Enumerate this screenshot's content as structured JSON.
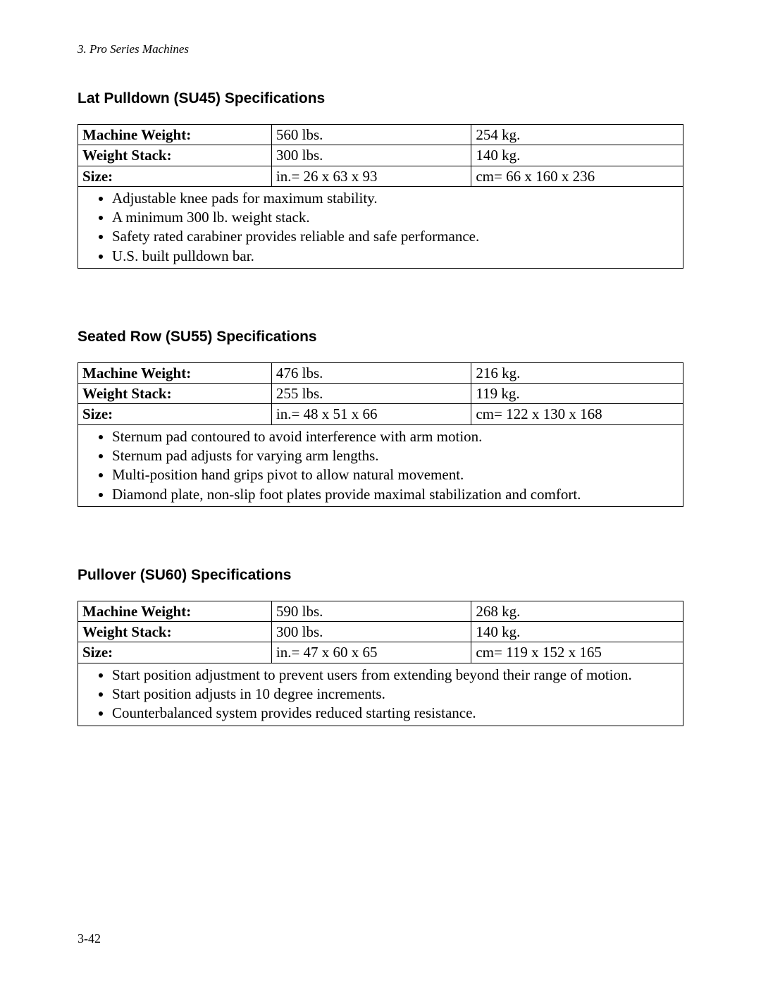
{
  "running_header": "3. Pro Series Machines",
  "page_number": "3-42",
  "sections": {
    "su45": {
      "heading": "Lat Pulldown (SU45) Specifications",
      "rows": [
        {
          "label": "Machine Weight:",
          "imperial": "560 lbs.",
          "metric": "254 kg."
        },
        {
          "label": "Weight Stack:",
          "imperial": "300 lbs.",
          "metric": "140 kg."
        },
        {
          "label": "Size:",
          "imperial": "in.= 26 x 63 x 93",
          "metric": "cm= 66 x 160 x 236"
        }
      ],
      "features": [
        "Adjustable knee pads for maximum stability.",
        "A minimum 300 lb. weight stack.",
        "Safety rated carabiner provides reliable and safe performance.",
        "U.S. built pulldown bar."
      ]
    },
    "su55": {
      "heading": "Seated Row (SU55) Specifications",
      "rows": [
        {
          "label": "Machine Weight:",
          "imperial": "476 lbs.",
          "metric": "216 kg."
        },
        {
          "label": "Weight Stack:",
          "imperial": "255 lbs.",
          "metric": "119 kg."
        },
        {
          "label": "Size:",
          "imperial": "in.= 48 x 51 x 66",
          "metric": "cm= 122 x 130 x 168"
        }
      ],
      "features": [
        "Sternum pad contoured to avoid interference with arm motion.",
        "Sternum pad adjusts for varying arm lengths.",
        "Multi-position hand grips pivot to allow natural movement.",
        "Diamond plate, non-slip foot plates provide maximal stabilization and comfort."
      ]
    },
    "su60": {
      "heading": "Pullover (SU60) Specifications",
      "rows": [
        {
          "label": "Machine Weight:",
          "imperial": "590 lbs.",
          "metric": "268 kg."
        },
        {
          "label": "Weight Stack:",
          "imperial": "300 lbs.",
          "metric": "140 kg."
        },
        {
          "label": "Size:",
          "imperial": "in.= 47 x 60 x 65",
          "metric": "cm= 119 x 152 x 165"
        }
      ],
      "features": [
        "Start position adjustment to prevent users from extending beyond their range of motion.",
        "Start position adjusts in 10 degree increments.",
        "Counterbalanced system provides reduced starting resistance."
      ]
    }
  }
}
